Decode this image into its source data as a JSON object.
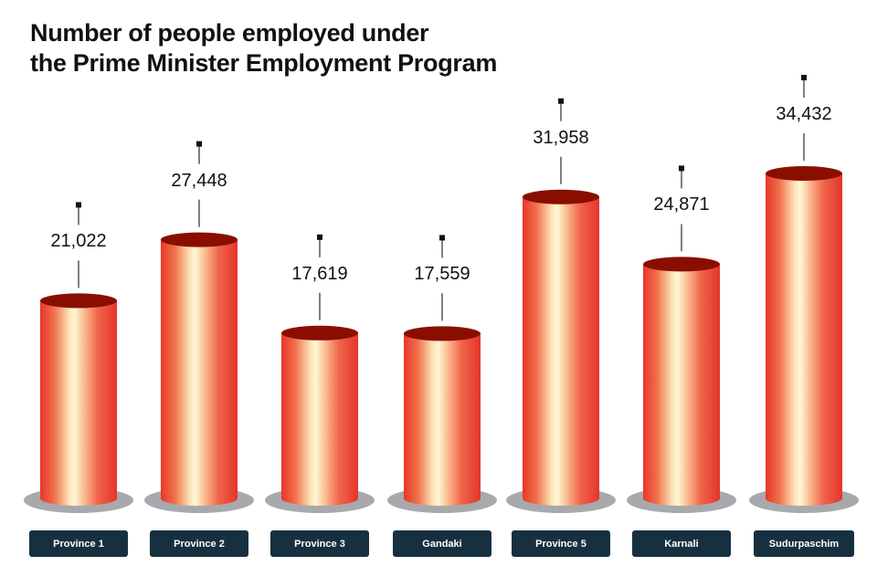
{
  "title": {
    "line1": "Number of people employed under",
    "line2": "the Prime Minister Employment Program"
  },
  "colors": {
    "cylinder_edge": "#e8362b",
    "cylinder_highlight": "#fff3d0",
    "cylinder_top": "#8a0e00",
    "base_shadow": "#a7a9ad",
    "label_bg": "#17303f",
    "label_text": "#ffffff"
  },
  "chart_data": {
    "type": "bar",
    "title": "Number of people employed under the Prime Minister Employment Program",
    "categories": [
      "Province 1",
      "Province 2",
      "Province 3",
      "Gandaki",
      "Province 5",
      "Karnali",
      "Sudurpaschim"
    ],
    "values": [
      21022,
      27448,
      17619,
      17559,
      31958,
      24871,
      34432
    ],
    "value_labels": [
      "21,022",
      "27,448",
      "17,619",
      "17,559",
      "31,958",
      "24,871",
      "34,432"
    ],
    "xlabel": "",
    "ylabel": "",
    "grid": false,
    "legend": null,
    "style": "3d-cylinder"
  },
  "bars": [
    {
      "label": "Province 1",
      "value_text": "21,022"
    },
    {
      "label": "Province 2",
      "value_text": "27,448"
    },
    {
      "label": "Province 3",
      "value_text": "17,619"
    },
    {
      "label": "Gandaki",
      "value_text": "17,559"
    },
    {
      "label": "Province 5",
      "value_text": "31,958"
    },
    {
      "label": "Karnali",
      "value_text": "24,871"
    },
    {
      "label": "Sudurpaschim",
      "value_text": "34,432"
    }
  ]
}
